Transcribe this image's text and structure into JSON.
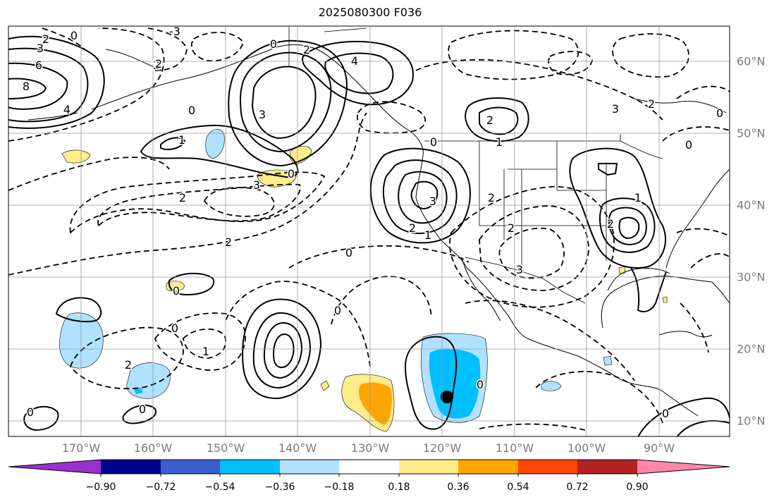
{
  "title": "2025080300 F036",
  "lon_labels": [
    "170°W",
    "160°W",
    "150°W",
    "140°W",
    "130°W",
    "120°W",
    "110°W",
    "100°W",
    "90°W"
  ],
  "lat_labels": [
    "60°N",
    "50°N",
    "40°N",
    "30°N",
    "20°N",
    "10°N"
  ],
  "colorbar": {
    "ticks": [
      "−0.90",
      "−0.72",
      "−0.54",
      "−0.36",
      "−0.18",
      "0.18",
      "0.36",
      "0.54",
      "0.72",
      "0.90"
    ],
    "colors": [
      "#9b30d0",
      "#00008b",
      "#3a5fcd",
      "#00bfff",
      "#b0e2ff",
      "#ffffff",
      "#ffec8b",
      "#ffa500",
      "#ff4500",
      "#b22222",
      "#ff88aa"
    ]
  },
  "contour_labels": [
    {
      "text": "3"
    },
    {
      "text": "6"
    },
    {
      "text": "8"
    },
    {
      "text": "4"
    },
    {
      "text": "2"
    },
    {
      "text": "0"
    },
    {
      "text": "-3"
    },
    {
      "text": "2"
    },
    {
      "text": "0"
    },
    {
      "text": "1"
    },
    {
      "text": "3"
    },
    {
      "text": "0"
    },
    {
      "text": "2"
    },
    {
      "text": "4"
    },
    {
      "text": "0"
    },
    {
      "text": "3"
    },
    {
      "text": "2"
    },
    {
      "text": "2"
    },
    {
      "text": "2"
    },
    {
      "text": "0"
    },
    {
      "text": "2"
    },
    {
      "text": "1"
    },
    {
      "text": "0"
    },
    {
      "text": "3"
    },
    {
      "text": "2"
    },
    {
      "text": "1"
    },
    {
      "text": "2"
    },
    {
      "text": "3"
    },
    {
      "text": "2"
    },
    {
      "text": "3"
    },
    {
      "text": "2"
    },
    {
      "text": "0"
    },
    {
      "text": "2"
    },
    {
      "text": "0"
    },
    {
      "text": "0"
    },
    {
      "text": "1"
    },
    {
      "text": "0"
    },
    {
      "text": "2"
    },
    {
      "text": "0"
    },
    {
      "text": "0"
    },
    {
      "text": "0"
    },
    {
      "text": "0"
    },
    {
      "text": "1"
    },
    {
      "text": "0"
    }
  ],
  "marker": {
    "label": "storm-center"
  }
}
